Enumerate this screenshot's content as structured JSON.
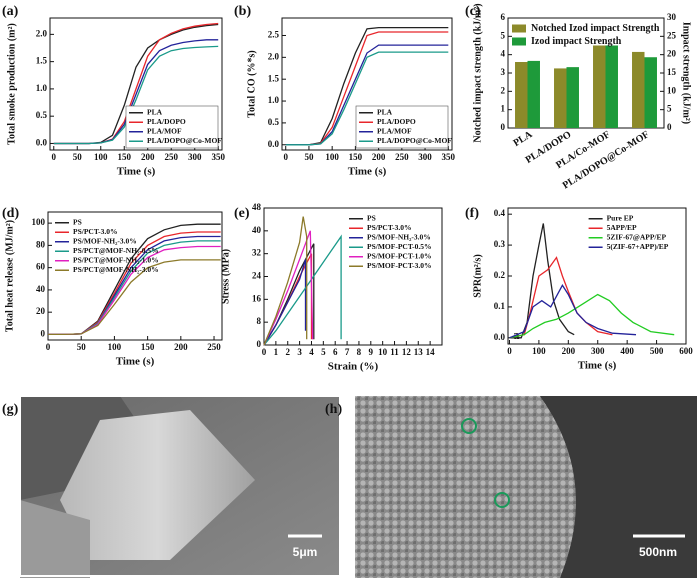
{
  "chart_data": [
    {
      "type": "line",
      "panel": "(a)",
      "x_label": "Time (s)",
      "y_label": "Total smoke production (m²)",
      "legend": "lower right",
      "x": [
        0,
        25,
        50,
        75,
        100,
        125,
        150,
        175,
        200,
        225,
        250,
        275,
        300,
        325,
        350
      ],
      "xlim": [
        -8,
        358
      ],
      "ylim": [
        -0.12,
        2.3
      ],
      "xticks": [
        0,
        50,
        100,
        150,
        200,
        250,
        300,
        350
      ],
      "yticks": [
        {
          "value": 0,
          "label": "0.0"
        },
        0.5,
        {
          "value": 1,
          "label": "1.0"
        },
        1.5,
        {
          "value": 2,
          "label": "2.0"
        }
      ],
      "series": [
        {
          "name": "PLA",
          "color": "#222222",
          "values": [
            0,
            0,
            0,
            0,
            0.02,
            0.15,
            0.7,
            1.4,
            1.75,
            1.9,
            2.0,
            2.08,
            2.13,
            2.16,
            2.18
          ]
        },
        {
          "name": "PLA/DOPO",
          "color": "#e8262b",
          "values": [
            0,
            0,
            0,
            0,
            0.01,
            0.08,
            0.4,
            1.0,
            1.6,
            1.9,
            2.02,
            2.1,
            2.15,
            2.18,
            2.2
          ]
        },
        {
          "name": "PLA/MOF",
          "color": "#23239a",
          "values": [
            0,
            0,
            0,
            0,
            0.01,
            0.07,
            0.35,
            0.9,
            1.45,
            1.7,
            1.8,
            1.85,
            1.88,
            1.9,
            1.9
          ]
        },
        {
          "name": "PLA/DOPO@Co-MOF",
          "color": "#1a9a8a",
          "values": [
            0,
            0,
            0,
            0,
            0.01,
            0.06,
            0.3,
            0.8,
            1.35,
            1.6,
            1.7,
            1.74,
            1.76,
            1.77,
            1.78
          ]
        }
      ]
    },
    {
      "type": "line",
      "panel": "(b)",
      "x_label": "Time (s)",
      "y_label": "Total CO (%*s)",
      "legend": "lower right",
      "x": [
        0,
        25,
        50,
        75,
        100,
        125,
        150,
        175,
        200,
        225,
        250,
        275,
        300,
        325,
        350
      ],
      "xlim": [
        -8,
        358
      ],
      "ylim": [
        -0.12,
        2.9
      ],
      "xticks": [
        0,
        50,
        100,
        150,
        200,
        250,
        300,
        350
      ],
      "yticks": [
        {
          "value": 0,
          "label": "0.0"
        },
        0.5,
        {
          "value": 1,
          "label": "1.0"
        },
        1.5,
        {
          "value": 2,
          "label": "2.0"
        },
        2.5
      ],
      "series": [
        {
          "name": "PLA",
          "color": "#222222",
          "values": [
            0,
            0,
            0,
            0.05,
            0.6,
            1.4,
            2.1,
            2.65,
            2.68,
            2.68,
            2.68,
            2.68,
            2.68,
            2.68,
            2.68
          ]
        },
        {
          "name": "PLA/DOPO",
          "color": "#e8262b",
          "values": [
            0,
            0,
            0,
            0.03,
            0.4,
            1.1,
            1.8,
            2.5,
            2.58,
            2.58,
            2.58,
            2.58,
            2.58,
            2.58,
            2.58
          ]
        },
        {
          "name": "PLA/MOF",
          "color": "#23239a",
          "values": [
            0,
            0,
            0,
            0.02,
            0.3,
            0.9,
            1.5,
            2.1,
            2.28,
            2.28,
            2.28,
            2.28,
            2.28,
            2.28,
            2.28
          ]
        },
        {
          "name": "PLA/DOPO@Co-MOF",
          "color": "#1a9a8a",
          "values": [
            0,
            0,
            0,
            0.02,
            0.25,
            0.8,
            1.4,
            2.0,
            2.12,
            2.12,
            2.12,
            2.12,
            2.12,
            2.12,
            2.12
          ]
        }
      ]
    },
    {
      "type": "bar",
      "panel": "(c)",
      "y_label": "Notched impact strength (kJ/m²)",
      "y2_label": "Impact strength (kJ/m²)",
      "legend": "upper center",
      "categories": [
        "PLA",
        "PLA/DOPO",
        "PLA/Co-MOF",
        "PLA/DOPO@Co-MOF"
      ],
      "ylim": [
        0,
        6
      ],
      "yticks": [
        0,
        1,
        2,
        3,
        4,
        5,
        6
      ],
      "y2lim": [
        0,
        30
      ],
      "y2ticks": [
        0,
        5,
        10,
        15,
        20,
        25,
        30
      ],
      "series": [
        {
          "name": "Notched Izod impact Strength",
          "color": "#8c8a2a",
          "values": [
            3.6,
            3.25,
            4.5,
            4.15
          ]
        },
        {
          "name": "Izod impact Strength",
          "color": "#1e9a3a",
          "axis": "y2",
          "values": [
            18.3,
            16.6,
            22.5,
            19.3
          ]
        }
      ]
    },
    {
      "type": "line",
      "panel": "(d)",
      "x_label": "Time (s)",
      "y_label": "Total heat release (MJ/m²)",
      "legend": "upper left",
      "x": [
        0,
        25,
        50,
        75,
        100,
        125,
        150,
        175,
        200,
        225,
        250,
        260
      ],
      "xlim": [
        0,
        262
      ],
      "ylim": [
        -5,
        110
      ],
      "xticks": [
        0,
        50,
        100,
        150,
        200,
        250
      ],
      "yticks": [
        0,
        20,
        40,
        60,
        80,
        100
      ],
      "series": [
        {
          "name": "PS",
          "color": "#222222",
          "values": [
            0,
            0,
            0.5,
            12,
            40,
            68,
            86,
            94,
            98,
            99,
            99,
            99
          ]
        },
        {
          "name": "PS/PCT-3.0%",
          "color": "#e8262b",
          "values": [
            0,
            0,
            0.5,
            11,
            37,
            64,
            80,
            88,
            91,
            92,
            92,
            92
          ]
        },
        {
          "name": "PS/MOF-NH₂-3.0%",
          "color": "#23239a",
          "values": [
            0,
            0,
            0.5,
            10,
            35,
            60,
            76,
            84,
            87,
            88,
            88,
            88
          ]
        },
        {
          "name": "PS/PCT@MOF-NH₂-0.5%",
          "color": "#1a9a8a",
          "values": [
            0,
            0,
            0.5,
            10,
            33,
            57,
            73,
            80,
            83,
            84,
            84,
            84
          ]
        },
        {
          "name": "PS/PCT@MOF-NH₂-1.0%",
          "color": "#e020c0",
          "values": [
            0,
            0,
            0.5,
            9,
            31,
            54,
            69,
            76,
            78,
            79,
            79,
            79
          ]
        },
        {
          "name": "PS/PCT@MOF-NH₂-3.0%",
          "color": "#8c7a2a",
          "values": [
            0,
            0,
            0.5,
            8,
            27,
            47,
            60,
            65,
            67,
            67,
            67,
            67
          ]
        }
      ]
    },
    {
      "type": "line",
      "panel": "(e)",
      "x_label": "Strain (%)",
      "y_label": "Stress (MPa)",
      "legend": "upper right",
      "xlim": [
        0,
        15
      ],
      "ylim": [
        0,
        48
      ],
      "xticks": [
        0,
        1,
        2,
        3,
        4,
        5,
        6,
        7,
        8,
        9,
        10,
        11,
        12,
        13,
        14
      ],
      "yticks": [
        0,
        8,
        16,
        24,
        32,
        40,
        48
      ],
      "series": [
        {
          "name": "PS",
          "color": "#222222",
          "x": [
            0,
            1,
            2,
            3,
            4.2,
            4.2
          ],
          "values": [
            0,
            7,
            16,
            26,
            35.5,
            2
          ]
        },
        {
          "name": "PS/PCT-3.0%",
          "color": "#e8262b",
          "x": [
            0,
            1,
            2,
            3,
            4,
            4
          ],
          "values": [
            0,
            7,
            15,
            24,
            32,
            2
          ]
        },
        {
          "name": "PS/MOF-NH₂-3.0%",
          "color": "#23239a",
          "x": [
            0,
            1,
            2,
            3,
            3.5,
            3.5
          ],
          "values": [
            0,
            7,
            15,
            23,
            30,
            5
          ]
        },
        {
          "name": "PS/MOF-PCT-0.5%",
          "color": "#1a9a8a",
          "x": [
            0,
            1,
            2,
            3,
            4,
            5,
            6.5,
            6.5
          ],
          "values": [
            0,
            5,
            11,
            17,
            23,
            29,
            38,
            2
          ]
        },
        {
          "name": "PS/MOF-PCT-1.0%",
          "color": "#e020c0",
          "x": [
            0,
            1,
            2,
            3,
            3.9,
            4.1
          ],
          "values": [
            0,
            9,
            19,
            30,
            40,
            2
          ]
        },
        {
          "name": "PS/MOF-PCT-3.0%",
          "color": "#8c7a2a",
          "x": [
            0,
            1,
            2,
            3,
            3.3,
            3.6,
            3.6
          ],
          "values": [
            0,
            10,
            22,
            36,
            45,
            38,
            2
          ]
        }
      ]
    },
    {
      "type": "line",
      "panel": "(f)",
      "x_label": "Time (s)",
      "y_label": "SPR(m²/s)",
      "legend": "upper right",
      "annotation": "a",
      "xlim": [
        -5,
        600
      ],
      "ylim": [
        -0.02,
        0.42
      ],
      "xticks": [
        0,
        100,
        200,
        300,
        400,
        500,
        600
      ],
      "yticks": [
        {
          "value": 0,
          "label": "0.0"
        },
        0.1,
        0.2,
        0.3,
        0.4
      ],
      "series": [
        {
          "name": "Pure EP",
          "color": "#222222",
          "x": [
            0,
            40,
            60,
            80,
            100,
            115,
            130,
            150,
            170,
            200,
            220
          ],
          "values": [
            0,
            0,
            0.05,
            0.2,
            0.3,
            0.37,
            0.25,
            0.12,
            0.06,
            0.02,
            0.01
          ]
        },
        {
          "name": "5APP/EP",
          "color": "#e8262b",
          "x": [
            0,
            50,
            70,
            100,
            130,
            160,
            180,
            200,
            230,
            260,
            300,
            350
          ],
          "values": [
            0,
            0.01,
            0.08,
            0.2,
            0.22,
            0.26,
            0.2,
            0.15,
            0.08,
            0.05,
            0.02,
            0.01
          ]
        },
        {
          "name": "5ZIF-67@APP/EP",
          "color": "#22cc22",
          "x": [
            0,
            50,
            80,
            120,
            160,
            200,
            250,
            300,
            340,
            380,
            420,
            480,
            560
          ],
          "values": [
            0,
            0.01,
            0.03,
            0.05,
            0.06,
            0.08,
            0.11,
            0.14,
            0.12,
            0.08,
            0.05,
            0.02,
            0.01
          ]
        },
        {
          "name": "5(ZIF-67+APP)/EP",
          "color": "#23239a",
          "x": [
            0,
            50,
            80,
            110,
            140,
            180,
            200,
            230,
            260,
            300,
            350,
            430
          ],
          "values": [
            0,
            0.02,
            0.1,
            0.12,
            0.1,
            0.17,
            0.14,
            0.08,
            0.05,
            0.03,
            0.015,
            0.01
          ]
        }
      ]
    }
  ],
  "images": [
    {
      "label": "(g)",
      "scale_bar": "5μm"
    },
    {
      "label": "(h)",
      "scale_bar": "500nm"
    }
  ]
}
